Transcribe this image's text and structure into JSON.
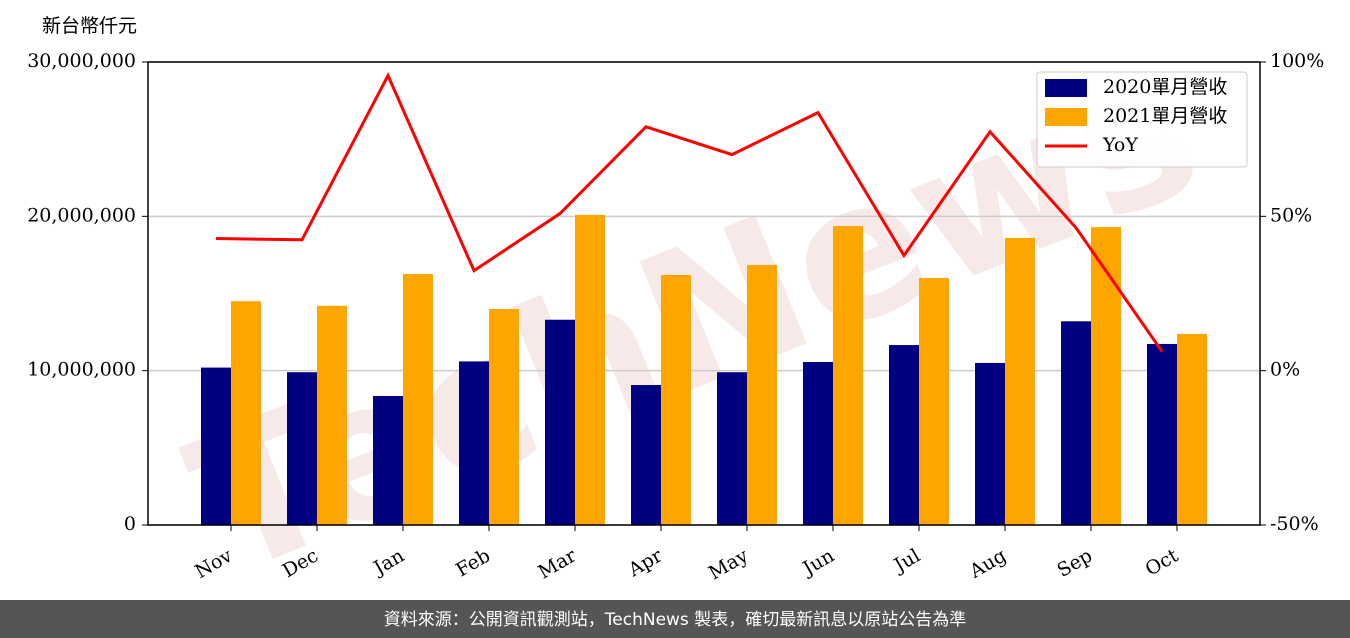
{
  "chart_data": {
    "type": "bar",
    "y_label": "新台幣仟元",
    "categories": [
      "Nov",
      "Dec",
      "Jan",
      "Feb",
      "Mar",
      "Apr",
      "May",
      "Jun",
      "Jul",
      "Aug",
      "Sep",
      "Oct"
    ],
    "series": [
      {
        "name": "2020單月營收",
        "color": "#000080",
        "type": "bar",
        "values": [
          10200000,
          9900000,
          8360000,
          10600000,
          13300000,
          9070000,
          9900000,
          10560000,
          11660000,
          10500000,
          13200000,
          11730000
        ]
      },
      {
        "name": "2021單月營收",
        "color": "#ffa500",
        "type": "bar",
        "values": [
          14500000,
          14200000,
          16260000,
          14000000,
          20090000,
          16200000,
          16850000,
          19370000,
          16000000,
          18600000,
          19300000,
          12380000
        ]
      },
      {
        "name": "YoY",
        "color": "#ff0000",
        "type": "line",
        "axis": "y2",
        "values": [
          42.8,
          42.4,
          95.6,
          32.4,
          50.9,
          79,
          70,
          83.6,
          37.3,
          77.4,
          46.3,
          6.2
        ]
      }
    ],
    "ylim": [
      0,
      30000000
    ],
    "yticks": [
      0,
      {
        "value": 10000000,
        "label": "10,000,000"
      },
      {
        "value": 20000000,
        "label": "20,000,000"
      },
      {
        "value": 30000000,
        "label": "30,000,000"
      }
    ],
    "y2lim": [
      -50,
      100
    ],
    "y2ticks": [
      {
        "value": -50,
        "label": "-50%"
      },
      {
        "value": 0,
        "label": "0%"
      },
      {
        "value": 50,
        "label": "50%"
      },
      {
        "value": 100,
        "label": "100%"
      }
    ],
    "grid": true,
    "legend": "upper right",
    "watermark": "TechNews",
    "footer": "資料來源：公開資訊觀測站，TechNews 製表，確切最新訊息以原站公告為準"
  }
}
